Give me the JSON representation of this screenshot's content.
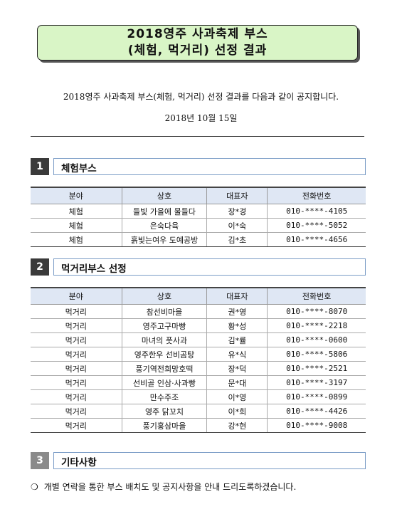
{
  "title": {
    "line1": "2018영주 사과축제 부스",
    "line2": "(체험, 먹거리) 선정 결과"
  },
  "intro": "2018영주 사과축제 부스(체험, 먹거리) 선정 결과를 다음과 같이 공지합니다.",
  "date": "2018년 10월 15일",
  "sections": [
    {
      "num": "1",
      "title": "체험부스"
    },
    {
      "num": "2",
      "title": "먹거리부스 선정"
    },
    {
      "num": "3",
      "title": "기타사항"
    }
  ],
  "columns": [
    "분야",
    "상호",
    "대표자",
    "전화번호"
  ],
  "experience_rows": [
    [
      "체험",
      "들빛 가을에 물들다",
      "장*경",
      "010-****-4105"
    ],
    [
      "체험",
      "은숙다육",
      "이*숙",
      "010-****-5052"
    ],
    [
      "체험",
      "흙빛는여우 도예공방",
      "김*초",
      "010-****-4656"
    ]
  ],
  "food_rows": [
    [
      "먹거리",
      "참선비마을",
      "권*영",
      "010-****-8070"
    ],
    [
      "먹거리",
      "영주고구마빵",
      "황*성",
      "010-****-2218"
    ],
    [
      "먹거리",
      "마녀의 풋사과",
      "김*률",
      "010-****-0600"
    ],
    [
      "먹거리",
      "영주한우 선비곰탕",
      "유*식",
      "010-****-5806"
    ],
    [
      "먹거리",
      "풍기역전희망호떡",
      "장*덕",
      "010-****-2521"
    ],
    [
      "먹거리",
      "선비골 인삼·사과빵",
      "문*대",
      "010-****-3197"
    ],
    [
      "먹거리",
      "만수주조",
      "이*영",
      "010-****-0899"
    ],
    [
      "먹거리",
      "영주 닭꼬치",
      "이*희",
      "010-****-4426"
    ],
    [
      "먹거리",
      "풍기홍삼마을",
      "강*현",
      "010-****-9008"
    ]
  ],
  "note": {
    "bullet": "❍",
    "text": "개별 연락을 통한 부스 배치도 및 공지사항을 안내 드리도록하겠습니다."
  }
}
